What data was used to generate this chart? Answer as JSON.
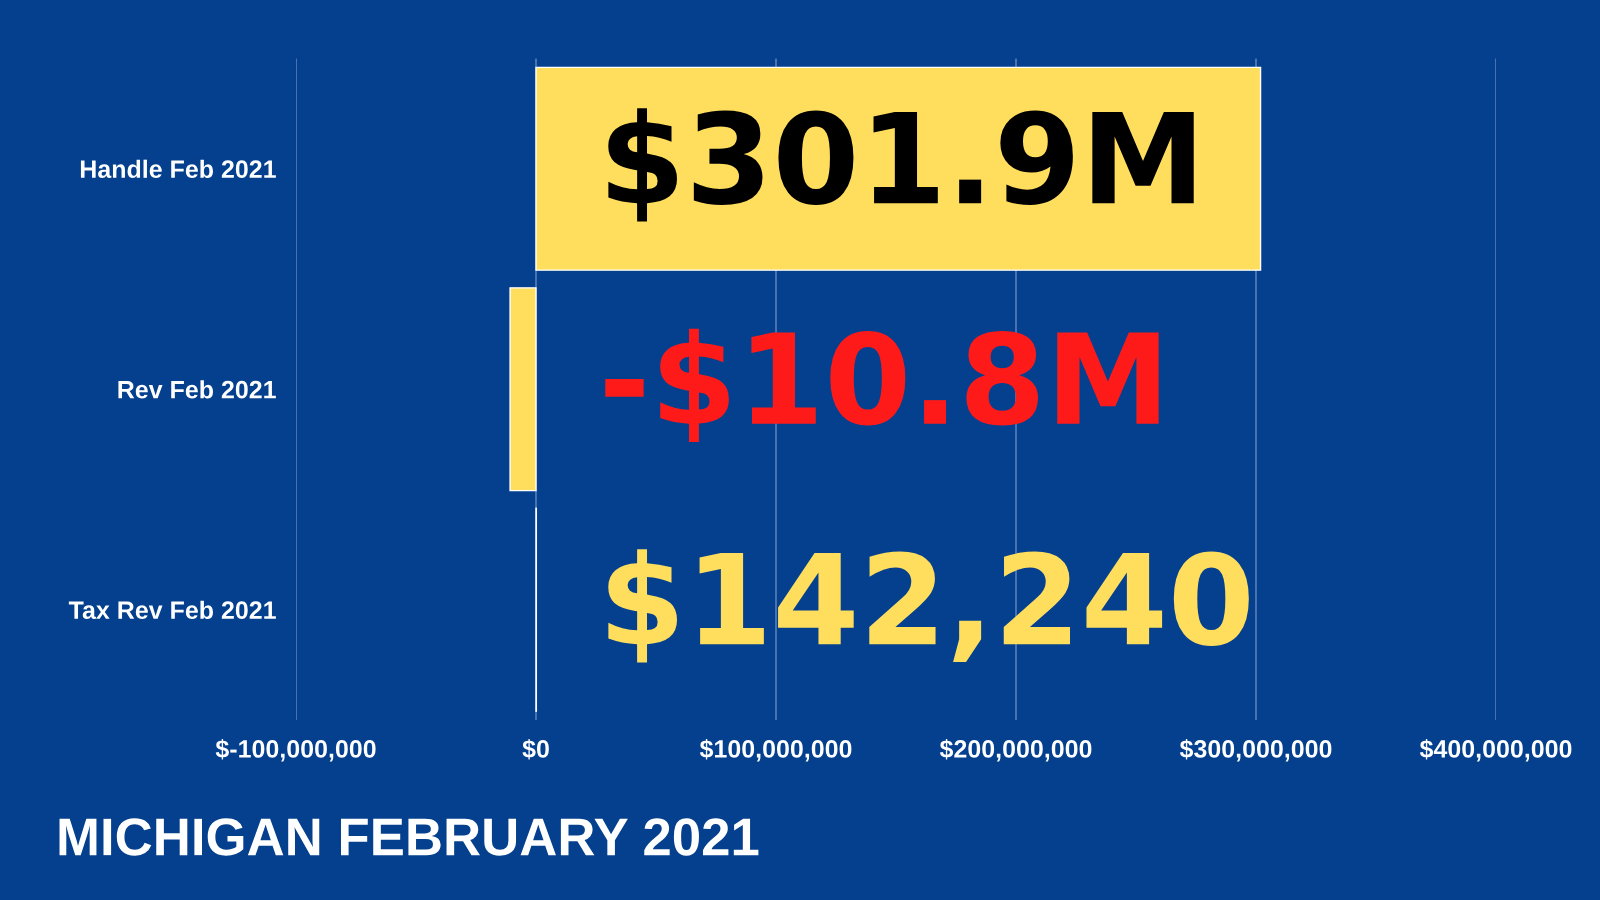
{
  "chart_data": {
    "type": "bar",
    "orientation": "horizontal",
    "title": "MICHIGAN FEBRUARY 2021",
    "categories": [
      "Handle Feb 2021",
      "Rev Feb 2021",
      "Tax Rev Feb 2021"
    ],
    "values": [
      301900000,
      -10800000,
      142240
    ],
    "value_labels": [
      "$301.9M",
      "-$10.8M",
      "$142,240"
    ],
    "color": "#ffde5e",
    "xlim": [
      -100000000,
      400000000
    ],
    "xticks": [
      {
        "value": -100000000,
        "label": "$-100,000,000"
      },
      {
        "value": 0,
        "label": "$0"
      },
      {
        "value": 100000000,
        "label": "$100,000,000"
      },
      {
        "value": 200000000,
        "label": "$200,000,000"
      },
      {
        "value": 300000000,
        "label": "$300,000,000"
      },
      {
        "value": 400000000,
        "label": "$400,000,000"
      }
    ],
    "grid": "x",
    "legend": false
  }
}
